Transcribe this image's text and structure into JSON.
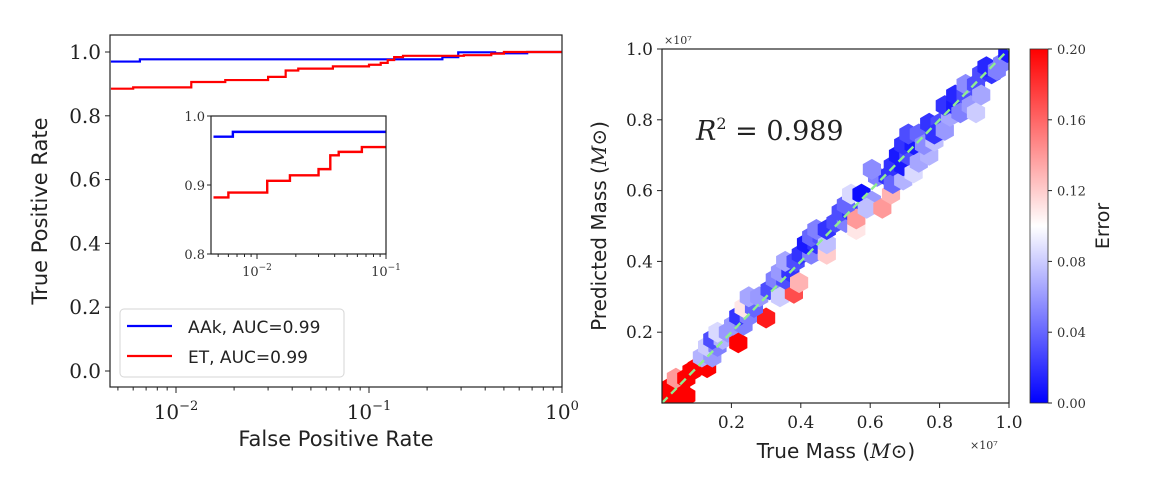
{
  "chart_data": [
    {
      "type": "line",
      "name": "roc-main",
      "title": "",
      "xlabel": "False Positive Rate",
      "ylabel": "True Positive Rate",
      "xscale": "log",
      "xlim": [
        0.0046,
        1.0
      ],
      "ylim": [
        -0.05,
        1.05
      ],
      "xticks": [
        {
          "value": 0.01,
          "label": "10",
          "exp": "−2"
        },
        {
          "value": 0.1,
          "label": "10",
          "exp": "−1"
        },
        {
          "value": 1.0,
          "label": "10",
          "exp": "0"
        }
      ],
      "yticks": [
        {
          "value": 0.0,
          "label": "0.0"
        },
        {
          "value": 0.2,
          "label": "0.2"
        },
        {
          "value": 0.4,
          "label": "0.4"
        },
        {
          "value": 0.6,
          "label": "0.6"
        },
        {
          "value": 0.8,
          "label": "0.8"
        },
        {
          "value": 1.0,
          "label": "1.0"
        }
      ],
      "legend": {
        "placement": "lower-left",
        "entries": [
          {
            "label": "AAk, AUC=0.99",
            "color": "#0000ff"
          },
          {
            "label": "ET, AUC=0.99",
            "color": "#ff0000"
          }
        ]
      },
      "series": [
        {
          "name": "AAk",
          "color": "#0000ff",
          "step": true,
          "x": [
            0.0046,
            0.0065,
            0.24,
            0.29,
            0.45,
            0.66,
            1.0
          ],
          "y": [
            0.97,
            0.977,
            0.984,
            0.999,
            0.996,
            1.0,
            1.0
          ]
        },
        {
          "name": "ET",
          "color": "#ff0000",
          "step": true,
          "x": [
            0.0046,
            0.006,
            0.012,
            0.018,
            0.03,
            0.037,
            0.043,
            0.065,
            0.1,
            0.115,
            0.125,
            0.135,
            0.15,
            0.31,
            0.43,
            0.5,
            1.0
          ],
          "y": [
            0.885,
            0.889,
            0.906,
            0.912,
            0.922,
            0.942,
            0.948,
            0.955,
            0.96,
            0.966,
            0.975,
            0.984,
            0.988,
            0.99,
            0.995,
            1.0,
            1.0
          ]
        }
      ]
    },
    {
      "type": "line",
      "name": "roc-inset",
      "xscale": "log",
      "xlim": [
        0.0046,
        0.1
      ],
      "ylim": [
        0.8,
        1.0
      ],
      "xticks": [
        {
          "value": 0.01,
          "label": "10",
          "exp": "−2"
        },
        {
          "value": 0.1,
          "label": "10",
          "exp": "−1"
        }
      ],
      "yticks": [
        {
          "value": 0.8,
          "label": "0.8"
        },
        {
          "value": 0.9,
          "label": "0.9"
        },
        {
          "value": 1.0,
          "label": "1.0"
        }
      ],
      "series": [
        {
          "name": "AAk",
          "color": "#0000ff",
          "x": [
            0.0046,
            0.0065,
            0.1
          ],
          "y": [
            0.97,
            0.977,
            0.977
          ]
        },
        {
          "name": "ET",
          "color": "#ff0000",
          "x": [
            0.0046,
            0.006,
            0.012,
            0.018,
            0.03,
            0.037,
            0.043,
            0.065,
            0.1
          ],
          "y": [
            0.882,
            0.889,
            0.906,
            0.914,
            0.923,
            0.943,
            0.948,
            0.955,
            0.955
          ]
        }
      ]
    },
    {
      "type": "heatmap",
      "subtype": "hexbin",
      "name": "mass-regression",
      "xlabel": "True Mass",
      "xlabel_unit": "M⊙",
      "ylabel": "Predicted Mass",
      "ylabel_unit": "M⊙",
      "x_multiplier": "×10⁷",
      "y_multiplier": "×10⁷",
      "xlim": [
        0.0,
        1.0
      ],
      "ylim": [
        0.0,
        1.0
      ],
      "xticks": [
        0.2,
        0.4,
        0.6,
        0.8,
        1.0
      ],
      "yticks": [
        0.2,
        0.4,
        0.6,
        0.8,
        1.0
      ],
      "tick_labels": [
        "0.2",
        "0.4",
        "0.6",
        "0.8",
        "1.0"
      ],
      "annotation": {
        "text_base": "R",
        "text_sup": "2",
        "text_rest": " = 0.989"
      },
      "reference_line": {
        "style": "dashed",
        "color": "#90ee90",
        "from": [
          0,
          0
        ],
        "to": [
          1,
          1
        ]
      },
      "colorbar": {
        "label": "Error",
        "range": [
          0.0,
          0.2
        ],
        "ticks": [
          "0.00",
          "0.04",
          "0.08",
          "0.12",
          "0.16",
          "0.20"
        ],
        "colormap": "bwr",
        "low_color": "#0000ff",
        "mid_color": "#ffffff",
        "high_color": "#ff0000"
      },
      "cells": [
        {
          "x": 0.01,
          "y": 0.02,
          "err": 0.2
        },
        {
          "x": 0.04,
          "y": 0.02,
          "err": 0.2
        },
        {
          "x": 0.07,
          "y": 0.02,
          "err": 0.2
        },
        {
          "x": 0.025,
          "y": 0.045,
          "err": 0.2
        },
        {
          "x": 0.055,
          "y": 0.045,
          "err": 0.2
        },
        {
          "x": 0.04,
          "y": 0.07,
          "err": 0.14
        },
        {
          "x": 0.07,
          "y": 0.07,
          "err": 0.2
        },
        {
          "x": 0.085,
          "y": 0.09,
          "err": 0.2
        },
        {
          "x": 0.1,
          "y": 0.1,
          "err": 0.2
        },
        {
          "x": 0.13,
          "y": 0.1,
          "err": 0.2
        },
        {
          "x": 0.115,
          "y": 0.13,
          "err": 0.07
        },
        {
          "x": 0.145,
          "y": 0.13,
          "err": 0.06
        },
        {
          "x": 0.13,
          "y": 0.16,
          "err": 0.08
        },
        {
          "x": 0.16,
          "y": 0.16,
          "err": 0.05
        },
        {
          "x": 0.145,
          "y": 0.18,
          "err": 0.03
        },
        {
          "x": 0.175,
          "y": 0.18,
          "err": 0.07
        },
        {
          "x": 0.16,
          "y": 0.2,
          "err": 0.085
        },
        {
          "x": 0.19,
          "y": 0.2,
          "err": 0.06
        },
        {
          "x": 0.22,
          "y": 0.17,
          "err": 0.2
        },
        {
          "x": 0.205,
          "y": 0.22,
          "err": 0.06
        },
        {
          "x": 0.235,
          "y": 0.22,
          "err": 0.05
        },
        {
          "x": 0.22,
          "y": 0.245,
          "err": 0.02
        },
        {
          "x": 0.25,
          "y": 0.245,
          "err": 0.05
        },
        {
          "x": 0.3,
          "y": 0.24,
          "err": 0.19
        },
        {
          "x": 0.235,
          "y": 0.27,
          "err": 0.11
        },
        {
          "x": 0.265,
          "y": 0.27,
          "err": 0.04
        },
        {
          "x": 0.25,
          "y": 0.3,
          "err": 0.065
        },
        {
          "x": 0.28,
          "y": 0.3,
          "err": 0.06
        },
        {
          "x": 0.31,
          "y": 0.32,
          "err": 0.03
        },
        {
          "x": 0.34,
          "y": 0.3,
          "err": 0.08
        },
        {
          "x": 0.38,
          "y": 0.31,
          "err": 0.17
        },
        {
          "x": 0.325,
          "y": 0.35,
          "err": 0.05
        },
        {
          "x": 0.355,
          "y": 0.35,
          "err": 0.03
        },
        {
          "x": 0.34,
          "y": 0.37,
          "err": 0.06
        },
        {
          "x": 0.37,
          "y": 0.37,
          "err": 0.02
        },
        {
          "x": 0.395,
          "y": 0.34,
          "err": 0.13
        },
        {
          "x": 0.355,
          "y": 0.4,
          "err": 0.065
        },
        {
          "x": 0.385,
          "y": 0.4,
          "err": 0.03
        },
        {
          "x": 0.4,
          "y": 0.42,
          "err": 0.02
        },
        {
          "x": 0.43,
          "y": 0.42,
          "err": 0.05
        },
        {
          "x": 0.415,
          "y": 0.45,
          "err": 0.01
        },
        {
          "x": 0.445,
          "y": 0.45,
          "err": 0.02
        },
        {
          "x": 0.43,
          "y": 0.47,
          "err": 0.04
        },
        {
          "x": 0.46,
          "y": 0.47,
          "err": 0.03
        },
        {
          "x": 0.475,
          "y": 0.42,
          "err": 0.12
        },
        {
          "x": 0.475,
          "y": 0.45,
          "err": 0.075
        },
        {
          "x": 0.445,
          "y": 0.49,
          "err": 0.05
        },
        {
          "x": 0.475,
          "y": 0.49,
          "err": 0.02
        },
        {
          "x": 0.5,
          "y": 0.51,
          "err": 0.03
        },
        {
          "x": 0.53,
          "y": 0.51,
          "err": 0.05
        },
        {
          "x": 0.515,
          "y": 0.54,
          "err": 0.03
        },
        {
          "x": 0.545,
          "y": 0.54,
          "err": 0.02
        },
        {
          "x": 0.56,
          "y": 0.49,
          "err": 0.11
        },
        {
          "x": 0.56,
          "y": 0.52,
          "err": 0.14
        },
        {
          "x": 0.53,
          "y": 0.56,
          "err": 0.04
        },
        {
          "x": 0.545,
          "y": 0.59,
          "err": 0.085
        },
        {
          "x": 0.575,
          "y": 0.59,
          "err": 0.005
        },
        {
          "x": 0.605,
          "y": 0.57,
          "err": 0.06
        },
        {
          "x": 0.59,
          "y": 0.55,
          "err": 0.075
        },
        {
          "x": 0.635,
          "y": 0.55,
          "err": 0.14
        },
        {
          "x": 0.66,
          "y": 0.59,
          "err": 0.13
        },
        {
          "x": 0.62,
          "y": 0.64,
          "err": 0.05
        },
        {
          "x": 0.65,
          "y": 0.64,
          "err": 0.02
        },
        {
          "x": 0.605,
          "y": 0.66,
          "err": 0.055
        },
        {
          "x": 0.665,
          "y": 0.62,
          "err": 0.04
        },
        {
          "x": 0.695,
          "y": 0.63,
          "err": 0.07
        },
        {
          "x": 0.665,
          "y": 0.67,
          "err": 0.02
        },
        {
          "x": 0.695,
          "y": 0.67,
          "err": 0.01
        },
        {
          "x": 0.725,
          "y": 0.65,
          "err": 0.085
        },
        {
          "x": 0.68,
          "y": 0.7,
          "err": 0.01
        },
        {
          "x": 0.71,
          "y": 0.7,
          "err": 0.03
        },
        {
          "x": 0.74,
          "y": 0.68,
          "err": 0.065
        },
        {
          "x": 0.77,
          "y": 0.7,
          "err": 0.07
        },
        {
          "x": 0.695,
          "y": 0.73,
          "err": 0.02
        },
        {
          "x": 0.725,
          "y": 0.73,
          "err": 0.01
        },
        {
          "x": 0.71,
          "y": 0.76,
          "err": 0.03
        },
        {
          "x": 0.74,
          "y": 0.76,
          "err": 0.04
        },
        {
          "x": 0.755,
          "y": 0.73,
          "err": 0.055
        },
        {
          "x": 0.785,
          "y": 0.74,
          "err": 0.075
        },
        {
          "x": 0.77,
          "y": 0.79,
          "err": 0.02
        },
        {
          "x": 0.8,
          "y": 0.79,
          "err": 0.03
        },
        {
          "x": 0.785,
          "y": 0.76,
          "err": 0.02
        },
        {
          "x": 0.815,
          "y": 0.77,
          "err": 0.06
        },
        {
          "x": 0.83,
          "y": 0.81,
          "err": 0.065
        },
        {
          "x": 0.815,
          "y": 0.84,
          "err": 0.02
        },
        {
          "x": 0.845,
          "y": 0.84,
          "err": 0.01
        },
        {
          "x": 0.86,
          "y": 0.82,
          "err": 0.05
        },
        {
          "x": 0.845,
          "y": 0.87,
          "err": 0.015
        },
        {
          "x": 0.875,
          "y": 0.87,
          "err": 0.03
        },
        {
          "x": 0.89,
          "y": 0.84,
          "err": 0.06
        },
        {
          "x": 0.905,
          "y": 0.82,
          "err": 0.08
        },
        {
          "x": 0.875,
          "y": 0.9,
          "err": 0.055
        },
        {
          "x": 0.905,
          "y": 0.9,
          "err": 0.03
        },
        {
          "x": 0.92,
          "y": 0.87,
          "err": 0.065
        },
        {
          "x": 0.92,
          "y": 0.93,
          "err": 0.03
        },
        {
          "x": 0.95,
          "y": 0.93,
          "err": 0.02
        },
        {
          "x": 0.935,
          "y": 0.95,
          "err": 0.015
        },
        {
          "x": 0.965,
          "y": 0.94,
          "err": 0.05
        },
        {
          "x": 0.98,
          "y": 0.96,
          "err": 0.05
        },
        {
          "x": 0.995,
          "y": 0.99,
          "err": 0.01
        }
      ]
    }
  ]
}
